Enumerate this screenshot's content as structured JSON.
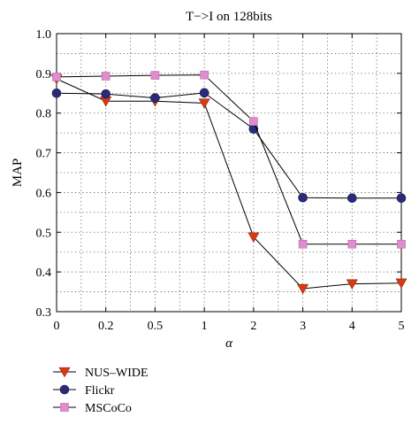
{
  "chart_data": {
    "type": "line",
    "title": "T−>I on 128bits",
    "xlabel": "α",
    "ylabel": "MAP",
    "categories": [
      "0",
      "0.2",
      "0.5",
      "1",
      "2",
      "3",
      "4",
      "5"
    ],
    "ylim": [
      0.3,
      1.0
    ],
    "yticks": [
      "0.3",
      "0.4",
      "0.5",
      "0.6",
      "0.7",
      "0.8",
      "0.9",
      "1.0"
    ],
    "grid": true,
    "legend_position": "bottom-left",
    "series": [
      {
        "name": "NUS–WIDE",
        "color": "#d93a12",
        "marker": "triangle-down-icon",
        "values": [
          0.886,
          0.83,
          0.83,
          0.825,
          0.488,
          0.358,
          0.37,
          0.372
        ]
      },
      {
        "name": "Flickr",
        "color": "#2a2a7a",
        "marker": "circle-icon",
        "values": [
          0.85,
          0.848,
          0.838,
          0.851,
          0.76,
          0.587,
          0.586,
          0.586
        ]
      },
      {
        "name": "MSCoCo",
        "color": "#e08ccf",
        "marker": "square-icon",
        "values": [
          0.891,
          0.893,
          0.895,
          0.896,
          0.779,
          0.47,
          0.47,
          0.47
        ]
      }
    ]
  }
}
